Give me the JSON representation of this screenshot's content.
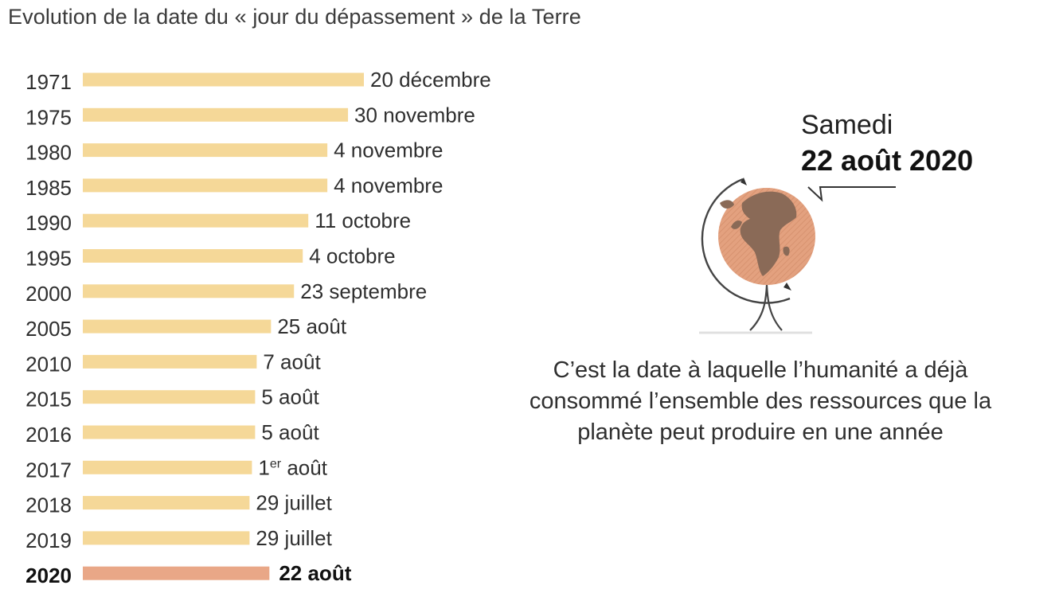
{
  "title": "Evolution de la date du « jour du dépassement » de la Terre",
  "chart_data": {
    "type": "bar",
    "orientation": "horizontal",
    "title": "Evolution de la date du « jour du dépassement » de la Terre",
    "value_unit": "day of year (date of Earth Overshoot Day)",
    "xlim": [
      0,
      366
    ],
    "categories": [
      "1971",
      "1975",
      "1980",
      "1985",
      "1990",
      "1995",
      "2000",
      "2005",
      "2010",
      "2015",
      "2016",
      "2017",
      "2018",
      "2019",
      "2020"
    ],
    "values": [
      354,
      334,
      308,
      308,
      284,
      277,
      266,
      237,
      219,
      217,
      217,
      213,
      210,
      210,
      235
    ],
    "labels": [
      {
        "text": "20 décembre"
      },
      {
        "text": "30 novembre"
      },
      {
        "text": "4 novembre"
      },
      {
        "text": "4 novembre"
      },
      {
        "text": "11 octobre"
      },
      {
        "text": "4 octobre"
      },
      {
        "text": "23 septembre"
      },
      {
        "text": "25 août"
      },
      {
        "text": "7 août"
      },
      {
        "text": "5 août"
      },
      {
        "text": "5 août"
      },
      {
        "text": "1",
        "sup": "er",
        "rest": " août"
      },
      {
        "text": "29 juillet"
      },
      {
        "text": "29 juillet"
      },
      {
        "text": "22 août"
      }
    ],
    "highlight_category": "2020",
    "colors": {
      "bar": "#f5d898",
      "highlight": "#e9a787"
    }
  },
  "callout": {
    "day": "Samedi",
    "date": "22 août 2020"
  },
  "caption": "C’est la date à laquelle l’humanité a déjà consommé l’ensemble des ressources que la planète peut produire en une année",
  "illustration": {
    "icon": "globe-icon"
  }
}
